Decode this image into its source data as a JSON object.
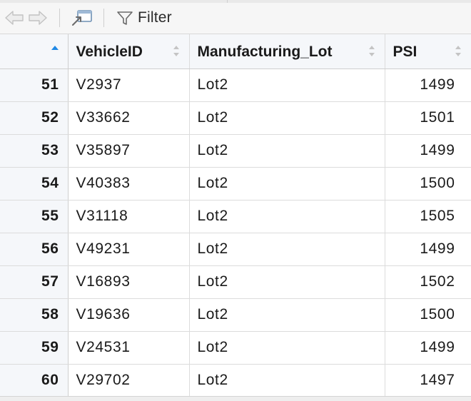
{
  "toolbar": {
    "back_icon": "arrow-left-icon",
    "forward_icon": "arrow-right-icon",
    "popout_icon": "popout-window-icon",
    "filter_icon": "funnel-icon",
    "filter_label": "Filter"
  },
  "table": {
    "columns": [
      {
        "label": "",
        "sort": "ascending"
      },
      {
        "label": "VehicleID",
        "sort": "none"
      },
      {
        "label": "Manufacturing_Lot",
        "sort": "none"
      },
      {
        "label": "PSI",
        "sort": "none"
      }
    ],
    "rows": [
      {
        "row": "51",
        "vehicle_id": "V2937",
        "lot": "Lot2",
        "psi": "1499"
      },
      {
        "row": "52",
        "vehicle_id": "V33662",
        "lot": "Lot2",
        "psi": "1501"
      },
      {
        "row": "53",
        "vehicle_id": "V35897",
        "lot": "Lot2",
        "psi": "1499"
      },
      {
        "row": "54",
        "vehicle_id": "V40383",
        "lot": "Lot2",
        "psi": "1500"
      },
      {
        "row": "55",
        "vehicle_id": "V31118",
        "lot": "Lot2",
        "psi": "1505"
      },
      {
        "row": "56",
        "vehicle_id": "V49231",
        "lot": "Lot2",
        "psi": "1499"
      },
      {
        "row": "57",
        "vehicle_id": "V16893",
        "lot": "Lot2",
        "psi": "1502"
      },
      {
        "row": "58",
        "vehicle_id": "V19636",
        "lot": "Lot2",
        "psi": "1500"
      },
      {
        "row": "59",
        "vehicle_id": "V24531",
        "lot": "Lot2",
        "psi": "1499"
      },
      {
        "row": "60",
        "vehicle_id": "V29702",
        "lot": "Lot2",
        "psi": "1497"
      }
    ]
  },
  "colors": {
    "header_bg": "#f5f7fa",
    "sort_active": "#1e88e5",
    "sort_inactive": "#c4c4c4",
    "grid_line": "#dcdcdc"
  }
}
